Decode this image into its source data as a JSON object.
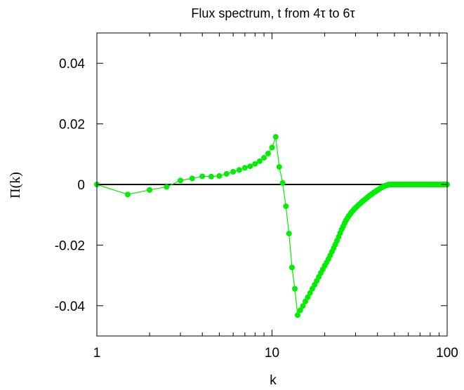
{
  "chart_data": {
    "type": "line",
    "title": "Flux spectrum, t from 4τ to 6τ",
    "xlabel": "k",
    "ylabel": "Π(k)",
    "xscale": "log",
    "xlim": [
      1,
      100
    ],
    "ylim": [
      -0.05,
      0.05
    ],
    "xticks": [
      "1",
      "10",
      "100"
    ],
    "yticks": [
      "0.04",
      "0.02",
      "0",
      "-0.02",
      "-0.04"
    ],
    "grid": false,
    "legend": "none",
    "zero_line": true,
    "series": [
      {
        "color": "#00ee00",
        "marker": "circle",
        "x": [
          1,
          1.5,
          2,
          2.5,
          3,
          3.5,
          4,
          4.5,
          5,
          5.5,
          6,
          6.5,
          7,
          7.5,
          8,
          8.5,
          9,
          9.5,
          10,
          10.5,
          11,
          11.5,
          12,
          12.5,
          13,
          13.5,
          14,
          14.5,
          15,
          15.5,
          16,
          16.5,
          17,
          17.5,
          18,
          18.5,
          19,
          19.5,
          20,
          20.5,
          21,
          21.5,
          22,
          22.5,
          23,
          23.5,
          24,
          24.5,
          25,
          25.5,
          26,
          26.5,
          27,
          27.5,
          28,
          28.5,
          29,
          29.5,
          30,
          30.5,
          31,
          31.5,
          32,
          32.5,
          33,
          33.5,
          34,
          34.5,
          35,
          35.5,
          36,
          36.5,
          37,
          37.5,
          38,
          38.5,
          39,
          39.5,
          40,
          40.5,
          41,
          41.5,
          42,
          42.5,
          43,
          43.5,
          44,
          44.5,
          45,
          45.5,
          46,
          46.5,
          47,
          47.5,
          48,
          48.5,
          49,
          49.5,
          50,
          50.5,
          51,
          51.5,
          52,
          52.5,
          53,
          53.5,
          54,
          54.5,
          55,
          55.5,
          56,
          56.5,
          57,
          57.5,
          58,
          58.5,
          59,
          59.5,
          60,
          60.5,
          61,
          61.5,
          62,
          62.5,
          63,
          63.5,
          64,
          64.5,
          65,
          65.5,
          66,
          66.5,
          67,
          67.5,
          68,
          68.5,
          69,
          69.5,
          70,
          70.5,
          71,
          71.5,
          72,
          72.5,
          73,
          73.5,
          74,
          74.5,
          75,
          75.5,
          76,
          76.5,
          77,
          77.5,
          78,
          78.5,
          79,
          79.5,
          80,
          80.5,
          81,
          81.5,
          82,
          82.5,
          83,
          83.5,
          84,
          84.5,
          85,
          85.5,
          86,
          86.5,
          87,
          87.5,
          88,
          88.5,
          89,
          89.5,
          90,
          90.5,
          91,
          91.5,
          92,
          92.5,
          93,
          93.5,
          94,
          94.5,
          95,
          95.5,
          96,
          96.5,
          97,
          97.5,
          98,
          98.5,
          99,
          99.5,
          100
        ],
        "y": [
          0,
          -0.0033,
          -0.0018,
          -0.0008,
          0.0013,
          0.002,
          0.0027,
          0.0026,
          0.0028,
          0.0035,
          0.0042,
          0.0048,
          0.0055,
          0.006,
          0.0068,
          0.0077,
          0.0088,
          0.0102,
          0.0122,
          0.0157,
          0.0058,
          0.0005,
          -0.0072,
          -0.0162,
          -0.0274,
          -0.0344,
          -0.0431,
          -0.0415,
          -0.0401,
          -0.0386,
          -0.0372,
          -0.0358,
          -0.0344,
          -0.0331,
          -0.0318,
          -0.0305,
          -0.0292,
          -0.028,
          -0.0268,
          -0.0257,
          -0.0246,
          -0.0234,
          -0.0222,
          -0.021,
          -0.0198,
          -0.0186,
          -0.0173,
          -0.016,
          -0.0148,
          -0.0138,
          -0.0127,
          -0.0118,
          -0.011,
          -0.0103,
          -0.0097,
          -0.0091,
          -0.0086,
          -0.0081,
          -0.0077,
          -0.0073,
          -0.0069,
          -0.0065,
          -0.0062,
          -0.0058,
          -0.0055,
          -0.0052,
          -0.0049,
          -0.0046,
          -0.0043,
          -0.004,
          -0.0037,
          -0.0035,
          -0.0032,
          -0.003,
          -0.0027,
          -0.0025,
          -0.0023,
          -0.0021,
          -0.0019,
          -0.0017,
          -0.0015,
          -0.0013,
          -0.0011,
          -0.0009,
          -0.0008,
          -0.0006,
          -0.0005,
          -0.0004,
          -0.0003,
          -0.0002,
          -0.0001,
          0,
          0,
          0,
          0,
          0,
          0,
          0,
          0,
          0,
          0,
          0,
          0,
          0,
          0,
          0,
          0,
          0,
          0,
          0,
          0,
          0,
          0,
          0,
          0,
          0,
          0,
          0,
          0,
          0,
          0,
          0,
          0,
          0,
          0,
          0,
          0,
          0,
          0,
          0,
          0,
          0,
          0,
          0,
          0,
          0,
          0,
          0,
          0,
          0,
          0,
          0,
          0,
          0,
          0,
          0,
          0,
          0,
          0,
          0,
          0,
          0,
          0,
          0,
          0,
          0,
          0,
          0,
          0,
          0,
          0,
          0,
          0,
          0,
          0,
          0,
          0,
          0,
          0,
          0,
          0,
          0,
          0,
          0,
          0,
          0,
          0,
          0,
          0,
          0,
          0,
          0,
          0,
          0,
          0,
          0,
          0,
          0,
          0,
          0,
          0,
          0,
          0,
          0,
          0,
          0,
          0,
          0,
          0
        ]
      }
    ]
  }
}
